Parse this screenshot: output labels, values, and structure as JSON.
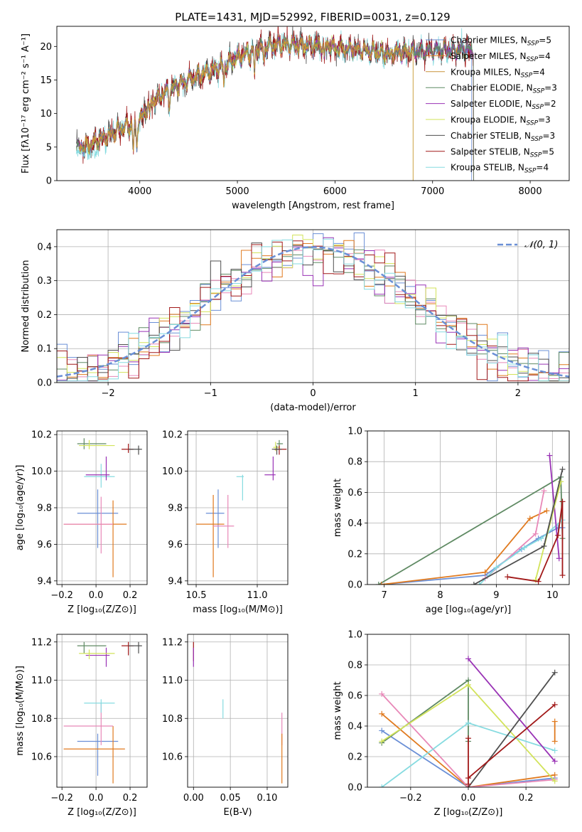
{
  "title": "PLATE=1431, MJD=52992, FIBERID=0031, z=0.129",
  "colors": {
    "Chabrier MILES": "#6a8fd6",
    "Salpeter MILES": "#e07a1f",
    "Kroupa MILES": "#c9923a",
    "Chabrier ELODIE": "#5f8a63",
    "Salpeter ELODIE": "#9932b5",
    "Kroupa ELODIE": "#d2e35a",
    "Chabrier STELIB": "#4f4f4f",
    "Salpeter STELIB": "#a11818",
    "Kroupa STELIB": "#86dbe0",
    "Pink": "#e888b8",
    "Normal": "#6a8fd6"
  },
  "chart_data": [
    {
      "id": "spectrum",
      "type": "line",
      "xlabel": "wavelength [Angstrom, rest frame]",
      "ylabel": "Flux [fλ10⁻¹⁷ erg cm⁻² s⁻¹ A⁻¹]",
      "xlim": [
        3150,
        8400
      ],
      "ylim": [
        0,
        23
      ],
      "xticks": [
        4000,
        5000,
        6000,
        7000,
        8000
      ],
      "yticks": [
        0,
        5,
        10,
        15,
        20
      ],
      "legend_position": "top-right",
      "series": [
        {
          "name": "Chabrier MILES, N",
          "sub": "SSP",
          "suffix": "=5"
        },
        {
          "name": "Salpeter MILES, N",
          "sub": "SSP",
          "suffix": "=4"
        },
        {
          "name": "Kroupa MILES, N",
          "sub": "SSP",
          "suffix": "=4"
        },
        {
          "name": "Chabrier ELODIE, N",
          "sub": "SSP",
          "suffix": "=3"
        },
        {
          "name": "Salpeter ELODIE, N",
          "sub": "SSP",
          "suffix": "=2"
        },
        {
          "name": "Kroupa ELODIE, N",
          "sub": "SSP",
          "suffix": "=3"
        },
        {
          "name": "Chabrier STELIB, N",
          "sub": "SSP",
          "suffix": "=3"
        },
        {
          "name": "Salpeter STELIB, N",
          "sub": "SSP",
          "suffix": "=5"
        },
        {
          "name": "Kroupa STELIB, N",
          "sub": "SSP",
          "suffix": "=4"
        }
      ],
      "continuum": [
        [
          3350,
          4.8
        ],
        [
          3500,
          5.5
        ],
        [
          3700,
          6.8
        ],
        [
          3850,
          8.2
        ],
        [
          3950,
          8.0
        ],
        [
          4000,
          9.0
        ],
        [
          4100,
          11.5
        ],
        [
          4300,
          13.5
        ],
        [
          4500,
          15.0
        ],
        [
          4700,
          16.2
        ],
        [
          4900,
          17.5
        ],
        [
          5100,
          19.0
        ],
        [
          5300,
          20.0
        ],
        [
          5500,
          20.3
        ],
        [
          5700,
          20.2
        ],
        [
          5900,
          20.2
        ],
        [
          6100,
          19.6
        ],
        [
          6300,
          19.4
        ],
        [
          6500,
          19.0
        ],
        [
          6700,
          19.2
        ],
        [
          6900,
          19.3
        ],
        [
          7100,
          19.5
        ],
        [
          7300,
          19.4
        ],
        [
          7400,
          19.4
        ]
      ],
      "dips": [
        [
          3934,
          3.5
        ],
        [
          3968,
          3.0
        ],
        [
          4102,
          2.0
        ],
        [
          4304,
          2.0
        ],
        [
          4861,
          2.5
        ],
        [
          5175,
          3.0
        ],
        [
          5270,
          1.5
        ],
        [
          5890,
          2.0
        ],
        [
          6563,
          1.5
        ]
      ]
    },
    {
      "id": "residuals",
      "type": "histogram",
      "xlabel": "(data-model)/error",
      "ylabel": "Normed distribution",
      "xlim": [
        -2.5,
        2.5
      ],
      "ylim": [
        0,
        0.45
      ],
      "xticks": [
        -2,
        -1,
        0,
        1,
        2
      ],
      "yticks": [
        0.0,
        0.1,
        0.2,
        0.3,
        0.4
      ],
      "bin_width": 0.1,
      "legend_label": "𝒩(0, 1)",
      "legend_position": "top-right"
    },
    {
      "id": "age_vs_Z",
      "type": "errorbar",
      "xlabel": "Z [log₁₀(Z/Z⊙)]",
      "ylabel": "age  [log₁₀(age/yr)]",
      "xlim": [
        -0.23,
        0.3
      ],
      "ylim": [
        9.38,
        10.22
      ],
      "xticks": [
        -0.2,
        0.0,
        0.2
      ],
      "yticks": [
        9.4,
        9.6,
        9.8,
        10.0,
        10.2
      ],
      "points": [
        {
          "c": "Chabrier MILES",
          "x": 0.01,
          "y": 9.77,
          "xe": [
            0.12,
            0.12
          ],
          "ye": [
            0.19,
            0.13
          ]
        },
        {
          "c": "Salpeter MILES",
          "x": 0.1,
          "y": 9.71,
          "xe": [
            0.29,
            0.08
          ],
          "ye": [
            0.29,
            0.13
          ]
        },
        {
          "c": "Pink",
          "x": 0.03,
          "y": 9.71,
          "xe": [
            0.22,
            0.07
          ],
          "ye": [
            0.16,
            0.15
          ]
        },
        {
          "c": "Kroupa STELIB",
          "x": 0.03,
          "y": 9.97,
          "xe": [
            0.1,
            0.08
          ],
          "ye": [
            0.06,
            0.07
          ]
        },
        {
          "c": "Salpeter ELODIE",
          "x": 0.06,
          "y": 9.98,
          "xe": [
            0.12,
            0.02
          ],
          "ye": [
            0.03,
            0.1
          ]
        },
        {
          "c": "Chabrier ELODIE",
          "x": -0.07,
          "y": 10.15,
          "xe": [
            0.04,
            0.13
          ],
          "ye": [
            0.03,
            0.03
          ]
        },
        {
          "c": "Kroupa ELODIE",
          "x": -0.04,
          "y": 10.14,
          "xe": [
            0.06,
            0.15
          ],
          "ye": [
            0.02,
            0.03
          ]
        },
        {
          "c": "Salpeter STELIB",
          "x": 0.19,
          "y": 10.12,
          "xe": [
            0.04,
            0.03
          ],
          "ye": [
            0.02,
            0.03
          ]
        },
        {
          "c": "Chabrier STELIB",
          "x": 0.25,
          "y": 10.12,
          "xe": [
            0.06,
            0.02
          ],
          "ye": [
            0.03,
            0.02
          ]
        }
      ]
    },
    {
      "id": "age_vs_mass",
      "type": "errorbar",
      "xlabel": "mass [log₁₀(M/M⊙)]",
      "xlim": [
        10.43,
        11.25
      ],
      "ylim": [
        9.38,
        10.22
      ],
      "xticks": [
        10.5,
        11.0
      ],
      "yticks": [
        9.4,
        9.6,
        9.8,
        10.0,
        10.2
      ],
      "points": [
        {
          "c": "Chabrier MILES",
          "x": 10.68,
          "y": 9.77,
          "xe": [
            0.1,
            0.05
          ],
          "ye": [
            0.19,
            0.13
          ]
        },
        {
          "c": "Salpeter MILES",
          "x": 10.64,
          "y": 9.71,
          "xe": [
            0.14,
            0.09
          ],
          "ye": [
            0.29,
            0.16
          ]
        },
        {
          "c": "Pink",
          "x": 10.76,
          "y": 9.7,
          "xe": [
            0.12,
            0.05
          ],
          "ye": [
            0.12,
            0.17
          ]
        },
        {
          "c": "Kroupa STELIB",
          "x": 10.88,
          "y": 9.97,
          "xe": [
            0.05,
            0.01
          ],
          "ye": [
            0.13,
            0.01
          ]
        },
        {
          "c": "Salpeter ELODIE",
          "x": 11.13,
          "y": 9.98,
          "xe": [
            0.07,
            0.02
          ],
          "ye": [
            0.03,
            0.1
          ]
        },
        {
          "c": "Chabrier ELODIE",
          "x": 11.18,
          "y": 10.15,
          "xe": [
            0.02,
            0.03
          ],
          "ye": [
            0.03,
            0.02
          ]
        },
        {
          "c": "Kroupa ELODIE",
          "x": 11.15,
          "y": 10.13,
          "xe": [
            0.02,
            0.03
          ],
          "ye": [
            0.02,
            0.03
          ]
        },
        {
          "c": "Salpeter STELIB",
          "x": 11.18,
          "y": 10.12,
          "xe": [
            0.04,
            0.06
          ],
          "ye": [
            0.03,
            0.02
          ]
        },
        {
          "c": "Chabrier STELIB",
          "x": 11.16,
          "y": 10.12,
          "xe": [
            0.04,
            0.04
          ],
          "ye": [
            0.03,
            0.02
          ]
        }
      ]
    },
    {
      "id": "weight_vs_age",
      "type": "line",
      "xlabel": "age  [log₁₀(age/yr)]",
      "ylabel": "mass weight",
      "xlim": [
        6.7,
        10.3
      ],
      "ylim": [
        0,
        1.0
      ],
      "xticks": [
        7,
        8,
        9,
        10
      ],
      "yticks": [
        0.0,
        0.2,
        0.4,
        0.6,
        0.8,
        1.0
      ],
      "series": [
        {
          "c": "Chabrier ELODIE",
          "pts": [
            [
              6.9,
              0.0
            ],
            [
              10.15,
              0.7
            ],
            [
              10.18,
              0.3
            ]
          ]
        },
        {
          "c": "Chabrier MILES",
          "pts": [
            [
              6.95,
              0.0
            ],
            [
              8.8,
              0.06
            ],
            [
              9.45,
              0.23
            ],
            [
              9.75,
              0.3
            ],
            [
              10.1,
              0.37
            ],
            [
              10.18,
              0.37
            ]
          ]
        },
        {
          "c": "Salpeter MILES",
          "pts": [
            [
              6.95,
              0.0
            ],
            [
              8.8,
              0.08
            ],
            [
              9.6,
              0.43
            ],
            [
              9.9,
              0.48
            ]
          ]
        },
        {
          "c": "Pink",
          "pts": [
            [
              8.8,
              0.04
            ],
            [
              9.7,
              0.33
            ],
            [
              9.85,
              0.61
            ]
          ]
        },
        {
          "c": "Kroupa STELIB",
          "pts": [
            [
              8.7,
              0.0
            ],
            [
              9.0,
              0.11
            ],
            [
              9.5,
              0.24
            ],
            [
              9.8,
              0.3
            ],
            [
              10.18,
              0.42
            ]
          ]
        },
        {
          "c": "Salpeter ELODIE",
          "pts": [
            [
              9.95,
              0.84
            ],
            [
              10.12,
              0.17
            ]
          ]
        },
        {
          "c": "Kroupa ELODIE",
          "pts": [
            [
              9.7,
              0.03
            ],
            [
              10.15,
              0.67
            ]
          ]
        },
        {
          "c": "Chabrier STELIB",
          "pts": [
            [
              8.6,
              0.0
            ],
            [
              9.85,
              0.25
            ],
            [
              10.18,
              0.75
            ]
          ]
        },
        {
          "c": "Salpeter STELIB",
          "pts": [
            [
              9.2,
              0.05
            ],
            [
              9.75,
              0.02
            ],
            [
              10.1,
              0.32
            ],
            [
              10.18,
              0.54
            ],
            [
              10.18,
              0.06
            ]
          ]
        }
      ]
    },
    {
      "id": "mass_vs_Z",
      "type": "errorbar",
      "xlabel": "Z [log₁₀(Z/Z⊙)]",
      "ylabel": "mass [log₁₀(M/M⊙)]",
      "xlim": [
        -0.23,
        0.3
      ],
      "ylim": [
        10.44,
        11.24
      ],
      "xticks": [
        -0.2,
        0.0,
        0.2
      ],
      "yticks": [
        10.6,
        10.8,
        11.0,
        11.2
      ],
      "points": [
        {
          "c": "Chabrier MILES",
          "x": 0.01,
          "y": 10.68,
          "xe": [
            0.12,
            0.12
          ],
          "ye": [
            0.18,
            0.04
          ]
        },
        {
          "c": "Salpeter MILES",
          "x": 0.1,
          "y": 10.64,
          "xe": [
            0.29,
            0.07
          ],
          "ye": [
            0.18,
            0.12
          ]
        },
        {
          "c": "Pink",
          "x": 0.03,
          "y": 10.76,
          "xe": [
            0.22,
            0.07
          ],
          "ye": [
            0.1,
            0.12
          ]
        },
        {
          "c": "Kroupa STELIB",
          "x": 0.03,
          "y": 10.88,
          "xe": [
            0.1,
            0.08
          ],
          "ye": [
            0.05,
            0.02
          ]
        },
        {
          "c": "Salpeter ELODIE",
          "x": 0.06,
          "y": 11.13,
          "xe": [
            0.12,
            0.02
          ],
          "ye": [
            0.06,
            0.04
          ]
        },
        {
          "c": "Chabrier ELODIE",
          "x": -0.07,
          "y": 11.18,
          "xe": [
            0.04,
            0.13
          ],
          "ye": [
            0.04,
            0.02
          ]
        },
        {
          "c": "Kroupa ELODIE",
          "x": -0.04,
          "y": 11.14,
          "xe": [
            0.06,
            0.15
          ],
          "ye": [
            0.03,
            0.02
          ]
        },
        {
          "c": "Salpeter STELIB",
          "x": 0.19,
          "y": 11.18,
          "xe": [
            0.04,
            0.03
          ],
          "ye": [
            0.05,
            0.02
          ]
        },
        {
          "c": "Chabrier STELIB",
          "x": 0.25,
          "y": 11.18,
          "xe": [
            0.06,
            0.02
          ],
          "ye": [
            0.04,
            0.02
          ]
        }
      ]
    },
    {
      "id": "mass_vs_ebv",
      "type": "errorbar",
      "xlabel": "E(B-V)",
      "xlim": [
        -0.008,
        0.128
      ],
      "ylim": [
        10.44,
        11.24
      ],
      "xticks": [
        0.0,
        0.05,
        0.1
      ],
      "yticks": [
        10.6,
        10.8,
        11.0,
        11.2
      ],
      "points": [
        {
          "c": "Salpeter STELIB",
          "x": 0.0,
          "y": 11.18,
          "xe": [
            0,
            0
          ],
          "ye": [
            0.08,
            0.02
          ]
        },
        {
          "c": "Salpeter ELODIE",
          "x": 0.0,
          "y": 11.13,
          "xe": [
            0,
            0
          ],
          "ye": [
            0.06,
            0.04
          ]
        },
        {
          "c": "Kroupa STELIB",
          "x": 0.04,
          "y": 10.86,
          "xe": [
            0,
            0
          ],
          "ye": [
            0.06,
            0.04
          ]
        },
        {
          "c": "Pink",
          "x": 0.12,
          "y": 10.76,
          "xe": [
            0,
            0
          ],
          "ye": [
            0.1,
            0.07
          ]
        },
        {
          "c": "Salpeter MILES",
          "x": 0.12,
          "y": 10.6,
          "xe": [
            0,
            0
          ],
          "ye": [
            0.14,
            0.12
          ]
        }
      ]
    },
    {
      "id": "weight_vs_Z",
      "type": "line",
      "xlabel": "Z [log₁₀(Z/Z⊙)]",
      "ylabel": "mass weight",
      "xlim": [
        -0.35,
        0.35
      ],
      "ylim": [
        0,
        1.0
      ],
      "xticks": [
        -0.2,
        0.0,
        0.2
      ],
      "yticks": [
        0.0,
        0.2,
        0.4,
        0.6,
        0.8,
        1.0
      ],
      "series": [
        {
          "c": "Chabrier MILES",
          "pts": [
            [
              -0.3,
              0.37
            ],
            [
              0.0,
              0.0
            ],
            [
              0.3,
              0.06
            ]
          ]
        },
        {
          "c": "Salpeter MILES",
          "pts": [
            [
              -0.3,
              0.48
            ],
            [
              0.0,
              0.0
            ],
            [
              0.3,
              0.08
            ]
          ]
        },
        {
          "c": "Pink",
          "pts": [
            [
              -0.3,
              0.61
            ],
            [
              0.0,
              0.0
            ],
            [
              0.3,
              0.05
            ]
          ]
        },
        {
          "c": "Chabrier ELODIE",
          "pts": [
            [
              -0.3,
              0.29
            ],
            [
              0.0,
              0.7
            ],
            [
              0.0,
              0.3
            ]
          ]
        },
        {
          "c": "Kroupa ELODIE",
          "pts": [
            [
              -0.3,
              0.3
            ],
            [
              0.0,
              0.67
            ],
            [
              0.3,
              0.04
            ]
          ]
        },
        {
          "c": "Kroupa STELIB",
          "pts": [
            [
              -0.3,
              0.0
            ],
            [
              0.0,
              0.42
            ],
            [
              0.3,
              0.24
            ]
          ]
        },
        {
          "c": "Salpeter ELODIE",
          "pts": [
            [
              0.0,
              0.84
            ],
            [
              0.3,
              0.17
            ]
          ]
        },
        {
          "c": "Chabrier STELIB",
          "pts": [
            [
              0.0,
              0.0
            ],
            [
              0.3,
              0.75
            ]
          ]
        },
        {
          "c": "Salpeter STELIB",
          "pts": [
            [
              0.0,
              0.06
            ],
            [
              0.3,
              0.54
            ]
          ]
        },
        {
          "c": "Salpeter STELIB",
          "pts": [
            [
              0.0,
              0.32
            ],
            [
              0.0,
              0.02
            ]
          ]
        },
        {
          "c": "Salpeter MILES",
          "pts": [
            [
              0.3,
              0.43
            ],
            [
              0.3,
              0.3
            ]
          ]
        }
      ]
    }
  ]
}
